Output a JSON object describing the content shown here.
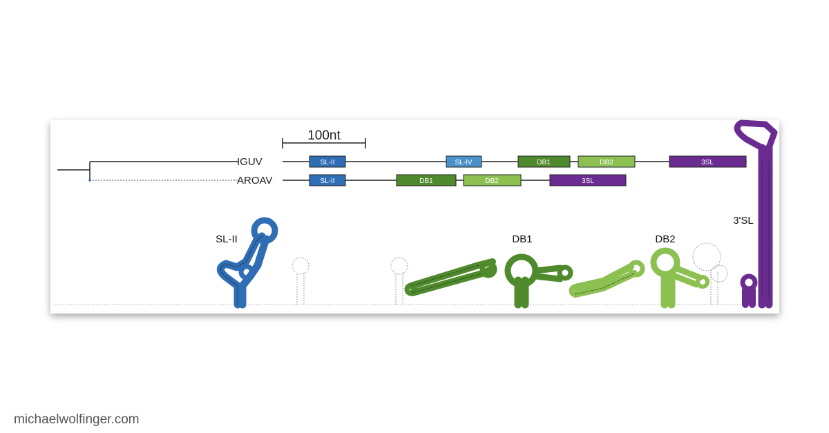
{
  "scale_label": "100nt",
  "tree": {
    "taxa": [
      "IGUV",
      "AROAV"
    ]
  },
  "domain_tracks": [
    {
      "taxon": "IGUV",
      "domains": [
        {
          "label": "SL-II",
          "color": "#2f6db5"
        },
        {
          "label": "SL-IV",
          "color": "#4a90c9"
        },
        {
          "label": "DB1",
          "color": "#4f8a2c"
        },
        {
          "label": "DB2",
          "color": "#8cc152"
        },
        {
          "label": "3SL",
          "color": "#6b2c91"
        }
      ]
    },
    {
      "taxon": "AROAV",
      "domains": [
        {
          "label": "SL-II",
          "color": "#2f6db5"
        },
        {
          "label": "DB1",
          "color": "#4f8a2c"
        },
        {
          "label": "DB2",
          "color": "#8cc152"
        },
        {
          "label": "3SL",
          "color": "#6b2c91"
        }
      ]
    }
  ],
  "structure_labels": {
    "sl2": "SL-II",
    "db1": "DB1",
    "db2": "DB2",
    "sl3": "3'SL"
  },
  "colors": {
    "sl2": "#2f6db5",
    "db1": "#4f8a2c",
    "db2": "#8cc152",
    "sl3": "#6b2c91",
    "outline": "#222222"
  },
  "footer": "michaelwolfinger.com"
}
